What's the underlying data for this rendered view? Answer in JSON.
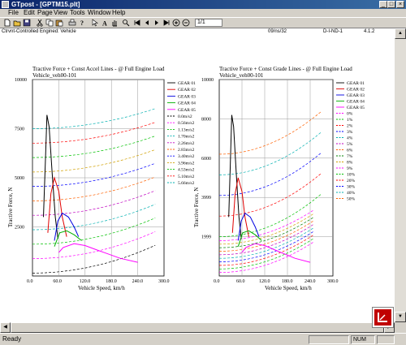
{
  "window": {
    "title": "GTpost - [GPTM15.plt]"
  },
  "menu": [
    "File",
    "Edit",
    "Page",
    "View",
    "Tools",
    "Window",
    "Help"
  ],
  "toolbar": {
    "page_field": "1/1"
  },
  "header": {
    "left": "Ctrvnt-Controlled Engined: Vehicle",
    "mid": "09/ns/32",
    "right1": "D-I-ND-1",
    "right2": "4.1.2"
  },
  "charts": {
    "left": {
      "title": "Tractive Force + Const Accel Lines - @ Full Engine Load",
      "subtitle": "Vehicle_veh00-101",
      "xlabel": "Vehicle Speed, km/h",
      "ylabel": "Tractive Force, N",
      "xticks": [
        "0.0",
        "60.0",
        "120.0",
        "180.0",
        "240.0",
        "300.0"
      ],
      "yticks": [
        "2500",
        "5000",
        "7500",
        "10000"
      ],
      "legend": [
        "GEAR 01",
        "GEAR 02",
        "GEAR 03",
        "GEAR 04",
        "GEAR 05",
        "0.0m/s2",
        "0.56m/s2",
        "1.13m/s2",
        "1.70m/s2",
        "2.26m/s2",
        "2.83m/s2",
        "3.40m/s2",
        "3.96m/s2",
        "4.53m/s2",
        "5.10m/s2",
        "5.66m/s2"
      ]
    },
    "right": {
      "title": "Tractive Force + Const Grade Lines - @ Full Engine Load",
      "subtitle": "Vehicle_veh00-101",
      "xlabel": "Vehicle Speed, km/h",
      "ylabel": "Tractive Force, N",
      "xticks": [
        "0.0",
        "60.0",
        "120.0",
        "180.0",
        "240.0",
        "300.0"
      ],
      "yticks": [
        "1999",
        "3999",
        "6000",
        "8000",
        "10000"
      ],
      "legend": [
        "GEAR 01",
        "GEAR 02",
        "GEAR 03",
        "GEAR 04",
        "GEAR 05",
        "0%",
        "1%",
        "2%",
        "3%",
        "4%",
        "5%",
        "6%",
        "7%",
        "8%",
        "9%",
        "10%",
        "20%",
        "30%",
        "40%",
        "50%"
      ]
    }
  },
  "colors": {
    "gears": [
      "#000000",
      "#e00000",
      "#0000e0",
      "#00b000",
      "#ff00ff"
    ],
    "accel": [
      "#000000",
      "#ff00ff",
      "#00c000",
      "#00b0b0",
      "#c000c0",
      "#ff6000",
      "#0000ff",
      "#d0a000",
      "#00c000",
      "#ff0000",
      "#00b0b0"
    ],
    "grade": [
      "#ff00ff",
      "#00c000",
      "#ff0000",
      "#0000ff",
      "#00b0b0",
      "#c000c0",
      "#ff6000",
      "#008000",
      "#d0a000",
      "#ff00ff",
      "#00c000",
      "#ff0000",
      "#0000ff",
      "#00b0b0",
      "#ff6000"
    ]
  },
  "status": {
    "text": "Ready",
    "num": "NUM"
  }
}
